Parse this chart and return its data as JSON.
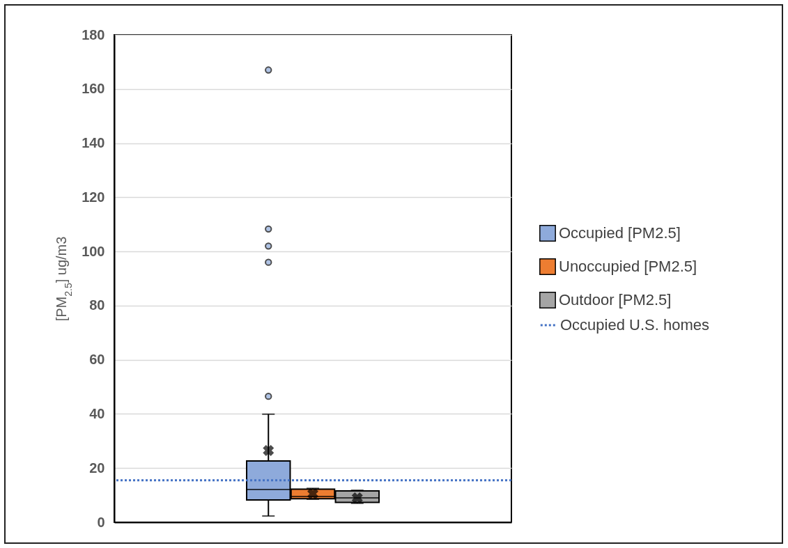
{
  "chart_data": {
    "type": "box",
    "ylabel": "[PM$_{2.5}$] ug/m3",
    "categories": [
      null
    ],
    "series": [
      {
        "name": "Occupied [PM2.5]",
        "color": "#8eaadb",
        "boxes": [
          {
            "low": 2.3,
            "q1": 8.2,
            "median": 12.1,
            "q3": 22.6,
            "high": 39.9,
            "mean": 26.5,
            "outliers": [
              167,
              108.3,
              102,
              96,
              46.5
            ]
          }
        ]
      },
      {
        "name": "Unoccupied [PM2.5]",
        "color": "#ed7d31",
        "boxes": [
          {
            "low": 8.5,
            "q1": 8.7,
            "median": 9.5,
            "q3": 12.2,
            "high": 12.5,
            "mean": 10.5
          }
        ]
      },
      {
        "name": "Outdoor [PM2.5]",
        "color": "#a5a5a5",
        "boxes": [
          {
            "low": 7.0,
            "q1": 7.3,
            "median": 9.0,
            "q3": 11.6,
            "high": 11.8,
            "mean": 9.0
          }
        ]
      }
    ],
    "ref_lines": [
      {
        "axis": "y",
        "value": 15.5,
        "label": "Occupied U.S. homes",
        "color": "#4472c4",
        "line_style": "dotted"
      }
    ],
    "ylim": [
      0,
      180
    ],
    "yticks": [
      0,
      20,
      40,
      60,
      80,
      100,
      120,
      140,
      160,
      180
    ],
    "grid": "y",
    "legend": "right",
    "tick_labels": "y",
    "marker": "circle"
  }
}
